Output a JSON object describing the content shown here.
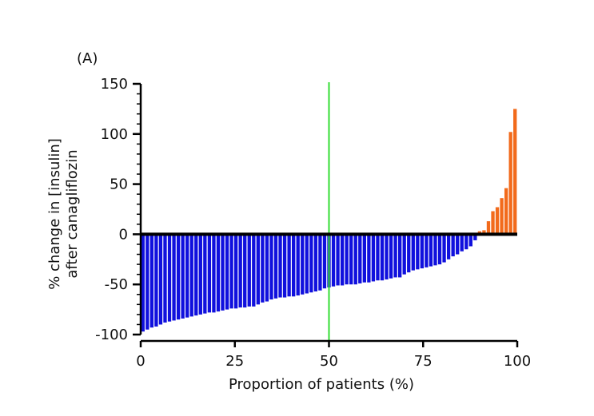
{
  "panel_label": "(A)",
  "chart_data": {
    "type": "bar",
    "title": "",
    "xlabel": "Proportion of patients (%)",
    "ylabel_lines": [
      "% change in [insulin]",
      "after canagliflozin"
    ],
    "xlim": [
      0,
      100
    ],
    "ylim": [
      -100,
      150
    ],
    "x_ticks": [
      0,
      25,
      50,
      75,
      100
    ],
    "y_ticks": [
      -100,
      -50,
      0,
      50,
      100,
      150
    ],
    "y_minor_step": 10,
    "reference_line": {
      "x": 50,
      "color": "#33dd33"
    },
    "colors": {
      "decrease": "#1010dd",
      "increase": "#f26a1b",
      "axis": "#000000"
    },
    "values": [
      -97,
      -95,
      -93,
      -92,
      -90,
      -88,
      -87,
      -86,
      -85,
      -84,
      -83,
      -82,
      -81,
      -80,
      -79,
      -78,
      -78,
      -77,
      -76,
      -75,
      -74,
      -74,
      -73,
      -73,
      -72,
      -72,
      -70,
      -68,
      -67,
      -65,
      -64,
      -63,
      -63,
      -62,
      -62,
      -61,
      -60,
      -59,
      -58,
      -57,
      -56,
      -54,
      -53,
      -52,
      -51,
      -51,
      -50,
      -50,
      -50,
      -49,
      -48,
      -48,
      -47,
      -46,
      -46,
      -45,
      -44,
      -43,
      -43,
      -40,
      -38,
      -36,
      -35,
      -34,
      -33,
      -32,
      -31,
      -30,
      -28,
      -25,
      -22,
      -20,
      -17,
      -15,
      -12,
      -6,
      3,
      4,
      13,
      23,
      27,
      36,
      46,
      102,
      125
    ]
  }
}
